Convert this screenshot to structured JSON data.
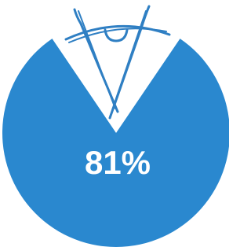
{
  "chart_data": {
    "type": "pie",
    "values": [
      81
    ],
    "value_labels": [
      "81%"
    ],
    "color": "#2a88cf"
  }
}
